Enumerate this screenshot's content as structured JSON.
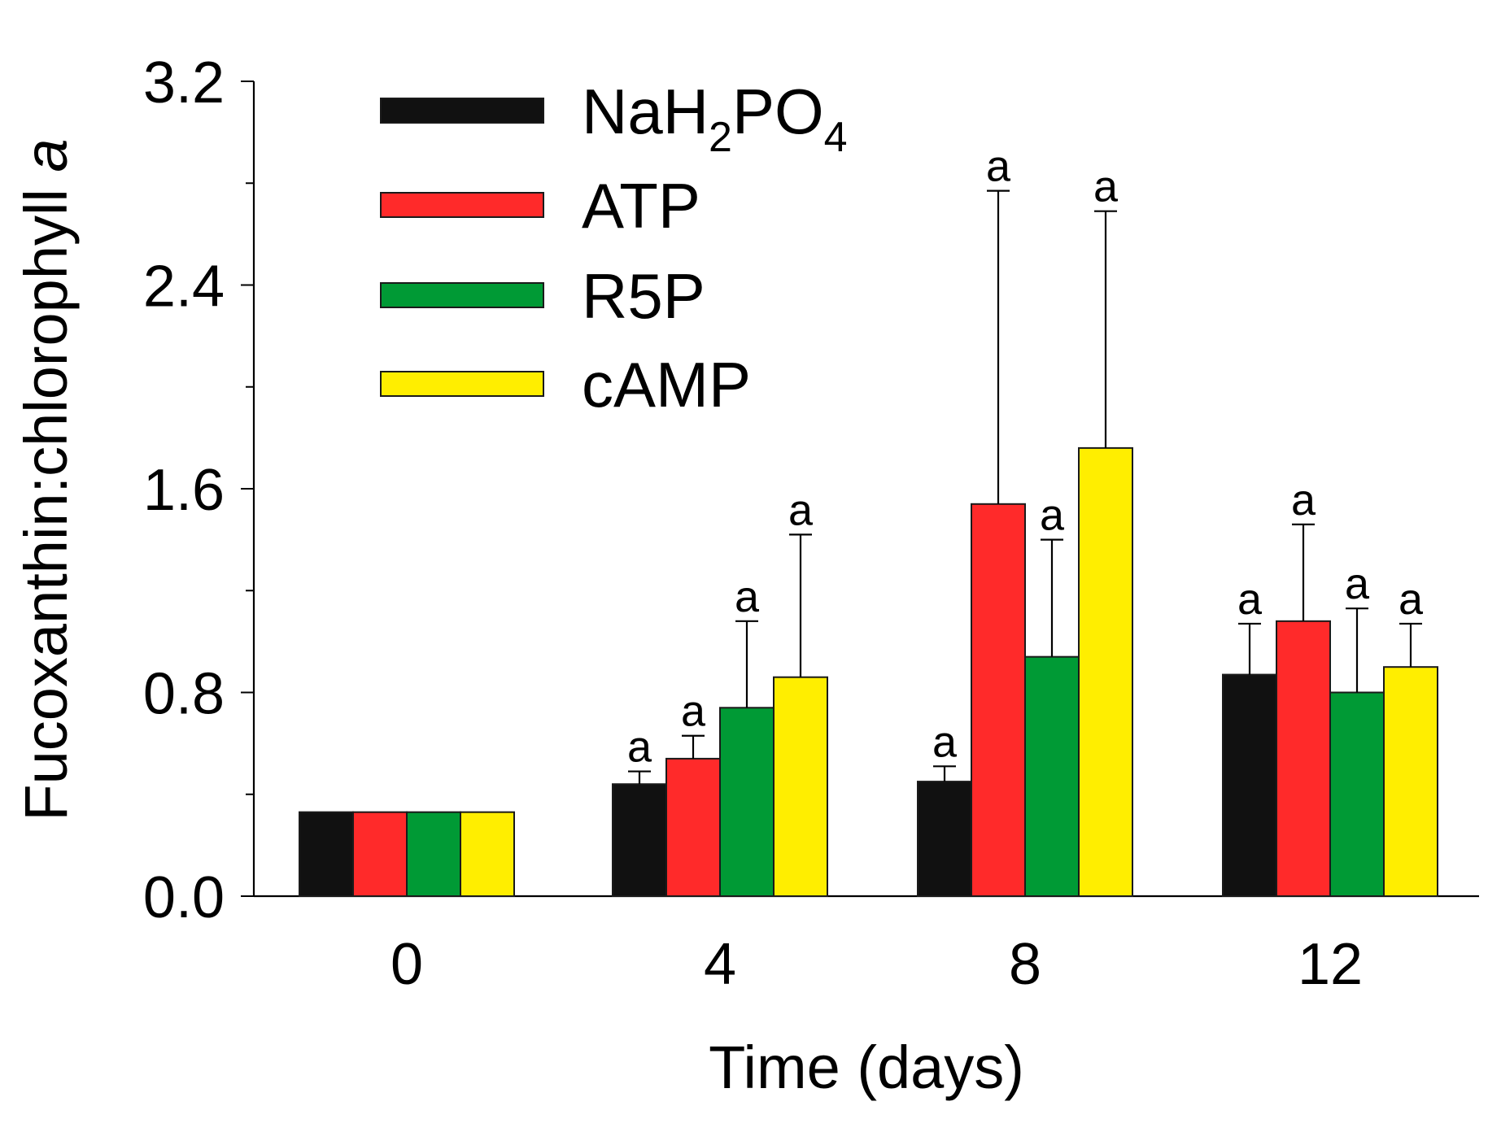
{
  "chart_data": {
    "type": "bar",
    "title": "",
    "xlabel": "Time (days)",
    "ylabel": "Fucoxanthin:chlorophyll a",
    "ylabel_main": "Fucoxanthin:chlorophyll ",
    "ylabel_italic": "a",
    "ylim": [
      0,
      3.2
    ],
    "yticks": [
      {
        "value": 0.0,
        "label": "0.0"
      },
      {
        "value": 0.8,
        "label": "0.8"
      },
      {
        "value": 1.6,
        "label": "1.6"
      },
      {
        "value": 2.4,
        "label": "2.4"
      },
      {
        "value": 3.2,
        "label": "3.2"
      }
    ],
    "yminor": [
      0.4,
      1.2,
      2.0,
      2.8
    ],
    "categories": [
      "0",
      "4",
      "8",
      "12"
    ],
    "legend_position": "top-left",
    "series": [
      {
        "name": "NaH2PO4",
        "label_parts": [
          "NaH",
          "2",
          "PO",
          "4"
        ],
        "color": "#111111",
        "values": [
          0.33,
          0.44,
          0.45,
          0.87
        ],
        "errors": [
          0,
          0.05,
          0.06,
          0.2
        ],
        "sig": [
          "",
          "a",
          "a",
          "a"
        ]
      },
      {
        "name": "ATP",
        "label_parts": [
          "ATP"
        ],
        "color": "#ff2a2a",
        "values": [
          0.33,
          0.54,
          1.54,
          1.08
        ],
        "errors": [
          0,
          0.09,
          1.23,
          0.38
        ],
        "sig": [
          "",
          "a",
          "a",
          "a"
        ]
      },
      {
        "name": "R5P",
        "label_parts": [
          "R5P"
        ],
        "color": "#009a35",
        "values": [
          0.33,
          0.74,
          0.94,
          0.8
        ],
        "errors": [
          0,
          0.34,
          0.46,
          0.33
        ],
        "sig": [
          "",
          "a",
          "a",
          "a"
        ]
      },
      {
        "name": "cAMP",
        "label_parts": [
          "cAMP"
        ],
        "color": "#ffee00",
        "values": [
          0.33,
          0.86,
          1.76,
          0.9
        ],
        "errors": [
          0,
          0.56,
          0.93,
          0.17
        ],
        "sig": [
          "",
          "a",
          "a",
          "a"
        ]
      }
    ]
  }
}
